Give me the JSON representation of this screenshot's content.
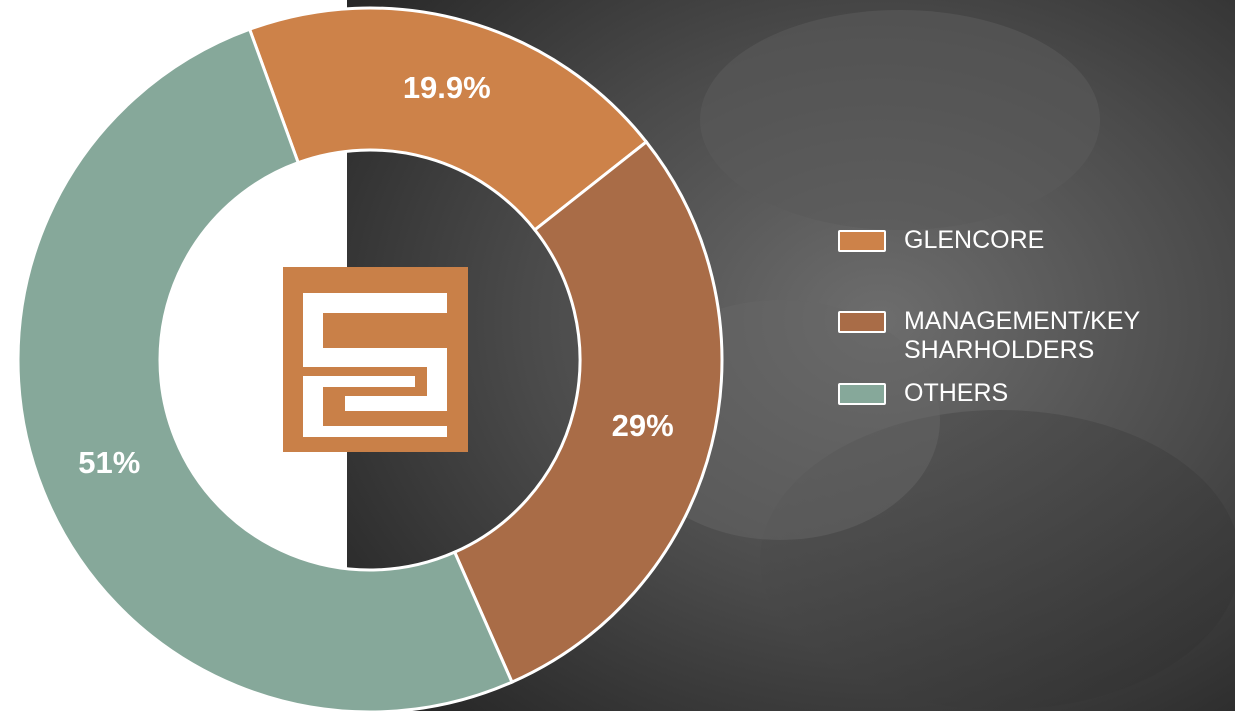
{
  "chart_data": {
    "type": "donut",
    "categories": [
      "GLENCORE",
      "MANAGEMENT/KEY SHARHOLDERS",
      "OTHERS"
    ],
    "values": [
      19.9,
      29,
      51
    ],
    "value_labels": [
      "19.9%",
      "29%",
      "51%"
    ],
    "colors": [
      "#cd8249",
      "#a96c47",
      "#86a89a"
    ]
  }
}
